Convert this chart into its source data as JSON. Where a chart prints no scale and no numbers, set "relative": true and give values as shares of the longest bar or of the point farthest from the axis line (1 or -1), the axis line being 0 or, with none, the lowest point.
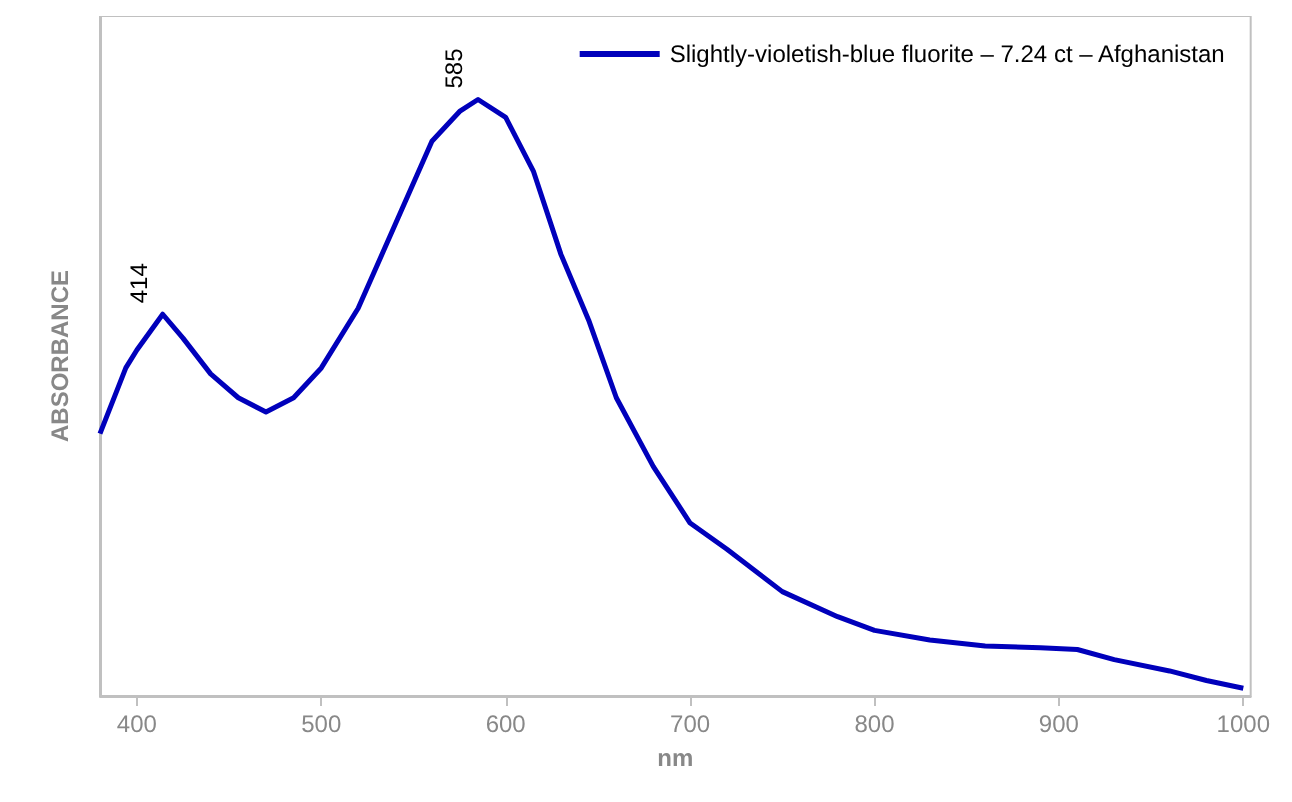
{
  "chart_data": {
    "type": "line",
    "relative": true,
    "xlabel": "nm",
    "ylabel": "ABSORBANCE",
    "xlim": [
      380,
      1004
    ],
    "xticks": [
      400,
      500,
      600,
      700,
      800,
      900,
      1000
    ],
    "x": [
      380,
      394,
      400,
      414,
      425,
      440,
      455,
      470,
      485,
      500,
      520,
      540,
      560,
      575,
      585,
      600,
      615,
      630,
      645,
      660,
      680,
      700,
      720,
      750,
      780,
      800,
      830,
      860,
      890,
      910,
      930,
      960,
      980,
      1000
    ],
    "series": [
      {
        "name": "Slightly-violetish-blue fluorite – 7.24 ct – Afghanistan",
        "color": "#0000bb",
        "values": [
          0.44,
          0.55,
          0.58,
          0.64,
          0.6,
          0.54,
          0.5,
          0.476,
          0.5,
          0.55,
          0.65,
          0.79,
          0.93,
          0.98,
          1.0,
          0.97,
          0.88,
          0.74,
          0.63,
          0.5,
          0.385,
          0.29,
          0.246,
          0.175,
          0.133,
          0.11,
          0.094,
          0.084,
          0.081,
          0.078,
          0.061,
          0.042,
          0.026,
          0.013
        ]
      }
    ],
    "annotations": [
      {
        "text": "414",
        "x": 414,
        "y": 0.64
      },
      {
        "text": "585",
        "x": 585,
        "y": 1.0
      }
    ],
    "legend": "top right",
    "grid": false,
    "marker": "none",
    "line_style": "solid"
  }
}
